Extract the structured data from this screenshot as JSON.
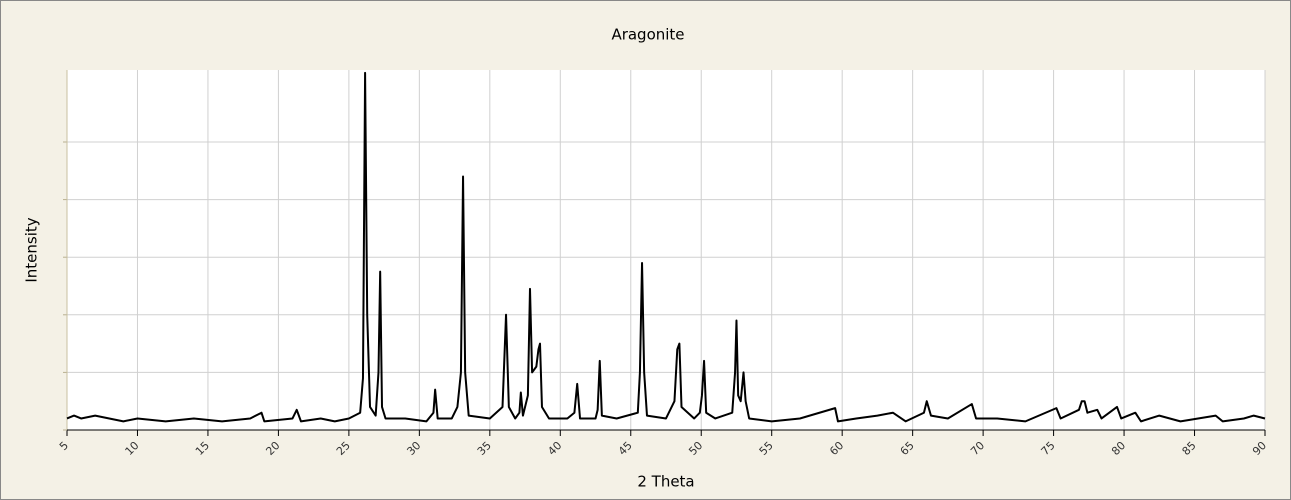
{
  "chart_data": {
    "type": "line",
    "title": "Aragonite",
    "xlabel": "2 Theta",
    "ylabel": "Intensity",
    "color": "#000000",
    "grid": true,
    "xlim": [
      5,
      90
    ],
    "xticks": [
      5,
      10,
      15,
      20,
      25,
      30,
      35,
      40,
      45,
      50,
      55,
      60,
      65,
      70,
      75,
      80,
      85,
      90
    ],
    "ylim": [
      0,
      125
    ],
    "yticks": [
      0,
      20,
      40,
      60,
      80,
      100
    ],
    "x": [
      5,
      5.5,
      6,
      7,
      8,
      9,
      10,
      12,
      14,
      16,
      18,
      18.8,
      19,
      21,
      21.3,
      21.6,
      23,
      24,
      25,
      25.8,
      26,
      26.15,
      26.3,
      26.5,
      26.9,
      27.1,
      27.22,
      27.35,
      27.6,
      29,
      30.5,
      31,
      31.12,
      31.3,
      32.3,
      32.7,
      32.95,
      33.1,
      33.25,
      33.5,
      35,
      35.9,
      36.15,
      36.35,
      36.8,
      37.1,
      37.2,
      37.35,
      37.7,
      37.85,
      38,
      38.3,
      38.45,
      38.56,
      38.7,
      39.2,
      40.5,
      41,
      41.2,
      41.4,
      42.5,
      42.65,
      42.8,
      42.95,
      44,
      45.5,
      45.65,
      45.8,
      45.95,
      46.15,
      47.5,
      48.1,
      48.3,
      48.45,
      48.6,
      49.5,
      49.9,
      50.05,
      50.2,
      50.35,
      51,
      52.2,
      52.4,
      52.5,
      52.62,
      52.8,
      53,
      53.15,
      53.4,
      55,
      57,
      59.5,
      59.7,
      61,
      62.5,
      63.6,
      64.5,
      65.8,
      66,
      66.3,
      67.5,
      69.2,
      69.5,
      71,
      73,
      75.2,
      75.5,
      76.8,
      77,
      77.2,
      77.4,
      78.1,
      78.4,
      79.5,
      79.8,
      80.8,
      81.2,
      82.5,
      84,
      86.5,
      87,
      88.5,
      89.2,
      90
    ],
    "values": [
      4,
      5,
      4,
      5,
      4,
      3,
      4,
      3,
      4,
      3,
      4,
      6,
      3,
      4,
      7,
      3,
      4,
      3,
      4,
      6,
      18,
      124,
      40,
      8,
      5,
      20,
      55,
      8,
      4,
      4,
      3,
      6,
      14,
      4,
      4,
      8,
      20,
      88,
      20,
      5,
      4,
      8,
      40,
      8,
      4,
      6,
      13,
      5,
      12,
      49,
      20,
      22,
      28,
      30,
      8,
      4,
      4,
      6,
      16,
      4,
      4,
      7,
      24,
      5,
      4,
      6,
      20,
      58,
      20,
      5,
      4,
      10,
      28,
      30,
      8,
      4,
      6,
      12,
      24,
      6,
      4,
      6,
      20,
      38,
      12,
      10,
      20,
      10,
      4,
      3,
      4,
      7.6,
      3,
      4,
      5,
      6,
      3,
      6,
      10,
      5,
      4,
      9,
      4,
      4,
      3,
      7.6,
      4,
      7,
      10,
      10,
      6,
      7,
      4,
      8,
      4,
      6,
      3,
      5,
      3,
      5,
      3,
      4,
      5,
      4
    ]
  }
}
